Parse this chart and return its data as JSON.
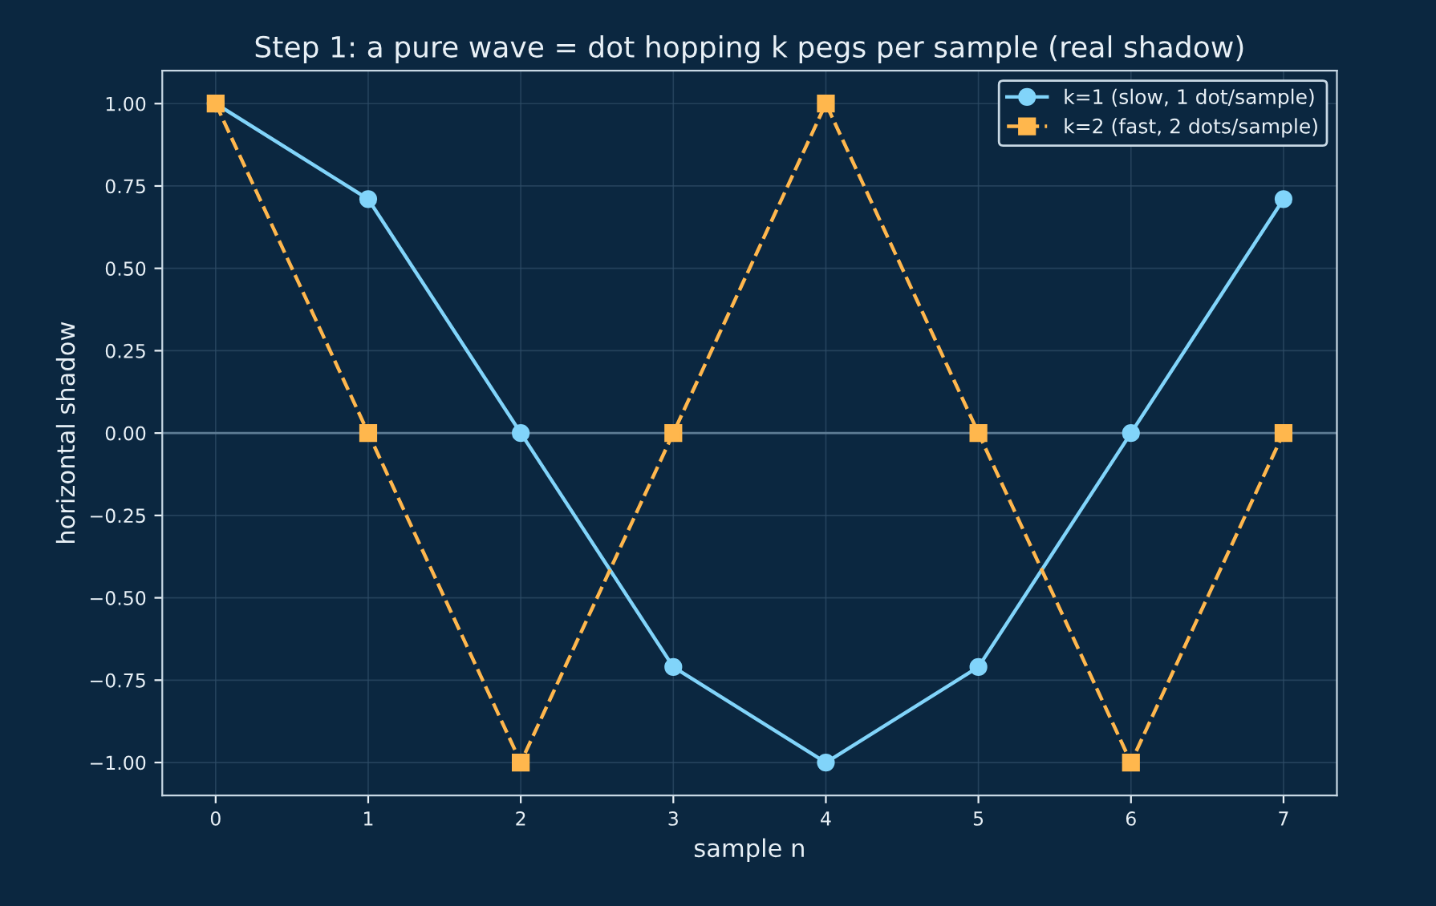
{
  "chart_data": {
    "type": "line",
    "title": "Step 1: a pure wave = dot hopping k pegs per sample (real shadow)",
    "xlabel": "sample n",
    "ylabel": "horizontal shadow",
    "x": [
      0,
      1,
      2,
      3,
      4,
      5,
      6,
      7
    ],
    "series": [
      {
        "name": "k=1 (slow, 1 dot/sample)",
        "color": "#81d4fa",
        "marker": "circle",
        "line_style": "solid",
        "values": [
          1.0,
          0.71,
          0.0,
          -0.71,
          -1.0,
          -0.71,
          0.0,
          0.71
        ]
      },
      {
        "name": "k=2 (fast, 2 dots/sample)",
        "color": "#ffb74d",
        "marker": "square",
        "line_style": "dashed",
        "values": [
          1.0,
          0.0,
          -1.0,
          0.0,
          1.0,
          0.0,
          -1.0,
          0.0
        ]
      }
    ],
    "xlim": [
      -0.35,
      7.35
    ],
    "ylim": [
      -1.1,
      1.1
    ],
    "xticks": [
      0,
      1,
      2,
      3,
      4,
      5,
      6,
      7
    ],
    "yticks": [
      {
        "value": -1,
        "label": "−1.00"
      },
      {
        "value": -0.75,
        "label": "−0.75"
      },
      {
        "value": -0.5,
        "label": "−0.50"
      },
      {
        "value": -0.25,
        "label": "−0.25"
      },
      {
        "value": 0,
        "label": "0.00"
      },
      {
        "value": 0.25,
        "label": "0.25"
      },
      {
        "value": 0.5,
        "label": "0.50"
      },
      {
        "value": 0.75,
        "label": "0.75"
      },
      {
        "value": 1,
        "label": "1.00"
      }
    ],
    "ref_lines": [
      {
        "axis": "y",
        "value": 0,
        "color": "#5f7d95"
      }
    ],
    "grid": true,
    "legend": "top right"
  }
}
